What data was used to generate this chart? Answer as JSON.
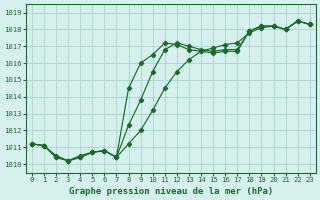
{
  "title": "Graphe pression niveau de la mer (hPa)",
  "bg_color": "#d6f0ee",
  "grid_color": "#b0d8d4",
  "line_color": "#1a6b2a",
  "xlim": [
    -0.5,
    23.5
  ],
  "ylim": [
    1009.5,
    1019.5
  ],
  "yticks": [
    1010,
    1011,
    1012,
    1013,
    1014,
    1015,
    1016,
    1017,
    1018,
    1019
  ],
  "xticks": [
    0,
    1,
    2,
    3,
    4,
    5,
    6,
    7,
    8,
    9,
    10,
    11,
    12,
    13,
    14,
    15,
    16,
    17,
    18,
    19,
    20,
    21,
    22,
    23
  ],
  "series1_x": [
    0,
    1,
    2,
    3,
    4,
    5,
    6,
    7,
    8,
    9,
    10,
    11,
    12,
    13,
    14,
    15,
    16,
    17,
    18,
    19,
    20,
    21,
    22,
    23
  ],
  "series1_y": [
    1011.2,
    1011.1,
    1010.4,
    1010.2,
    1010.4,
    1010.7,
    1010.8,
    1010.4,
    1011.2,
    1012.0,
    1013.2,
    1014.5,
    1015.5,
    1016.2,
    1016.7,
    1016.9,
    1017.1,
    1017.2,
    1017.8,
    1018.1,
    1018.2,
    1018.0,
    1018.5,
    1018.3
  ],
  "series2_x": [
    0,
    1,
    2,
    3,
    4,
    5,
    6,
    7,
    8,
    9,
    10,
    11,
    12,
    13,
    14,
    15,
    16,
    17,
    18,
    19,
    20,
    21,
    22,
    23
  ],
  "series2_y": [
    1011.2,
    1011.1,
    1010.5,
    1010.2,
    1010.5,
    1010.7,
    1010.8,
    1010.4,
    1012.3,
    1013.8,
    1015.5,
    1016.8,
    1017.2,
    1017.0,
    1016.8,
    1016.7,
    1016.8,
    1016.8,
    1017.9,
    1018.2,
    1018.2,
    1018.0,
    1018.5,
    1018.3
  ],
  "series3_x": [
    0,
    1,
    2,
    3,
    4,
    5,
    6,
    7,
    8,
    9,
    10,
    11,
    12,
    13,
    14,
    15,
    16,
    17,
    18,
    19,
    20,
    21,
    22,
    23
  ],
  "series3_y": [
    1011.2,
    1011.1,
    1010.4,
    1010.2,
    1010.4,
    1010.7,
    1010.8,
    1010.4,
    1014.5,
    1016.0,
    1016.5,
    1017.2,
    1017.1,
    1016.8,
    1016.7,
    1016.6,
    1016.7,
    1016.7,
    1017.9,
    1018.2,
    1018.2,
    1018.0,
    1018.5,
    1018.3
  ]
}
